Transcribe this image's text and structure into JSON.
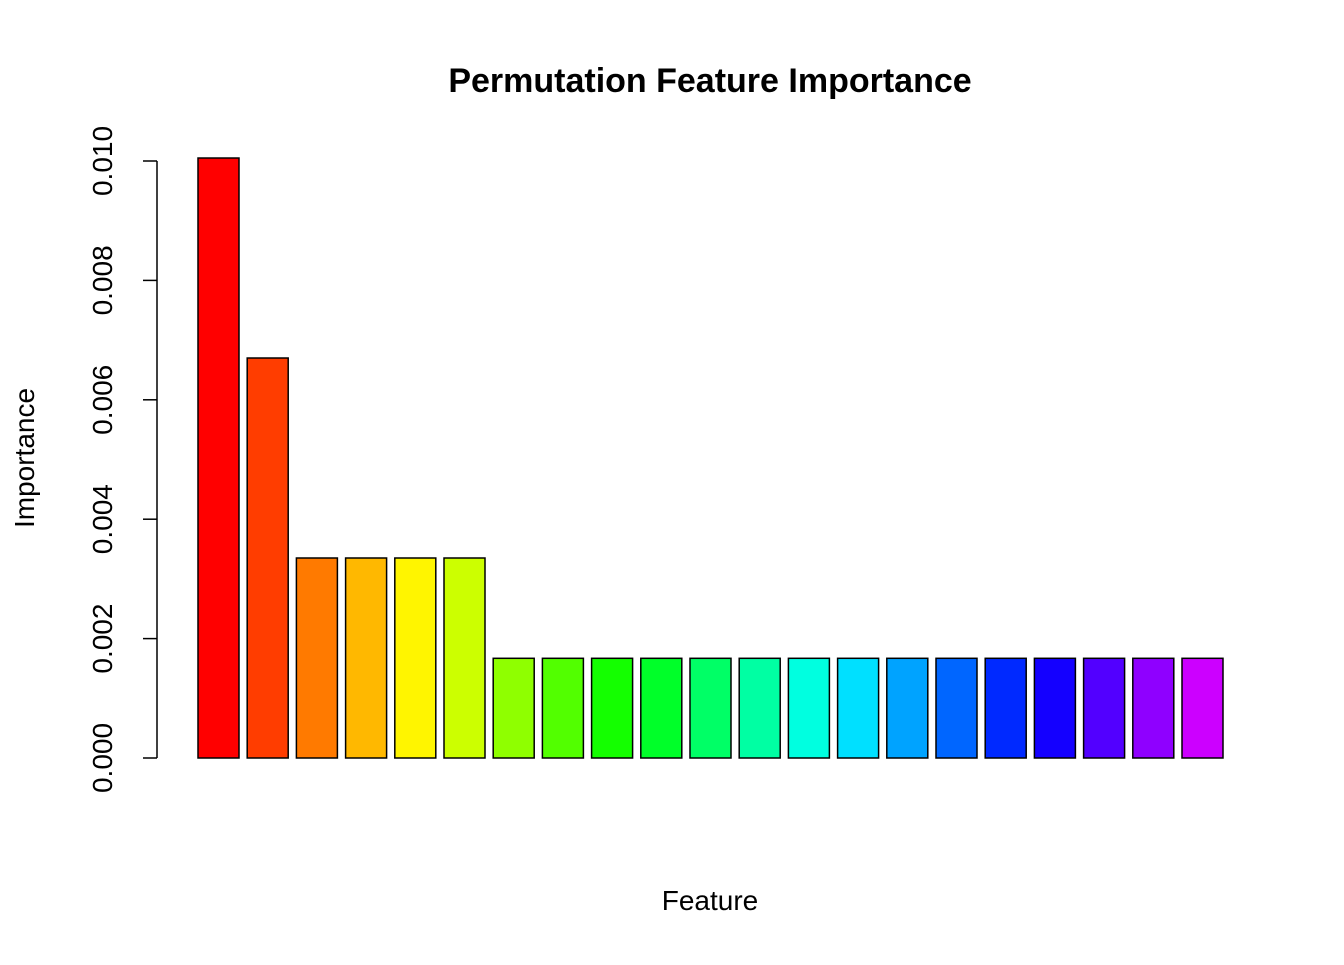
{
  "chart_data": {
    "type": "bar",
    "title": "Permutation Feature Importance",
    "xlabel": "Feature",
    "ylabel": "Importance",
    "ylim": [
      0,
      0.01
    ],
    "yticks": [
      "0.000",
      "0.002",
      "0.004",
      "0.006",
      "0.008",
      "0.010"
    ],
    "ytick_values": [
      0,
      0.002,
      0.004,
      0.006,
      0.008,
      0.01
    ],
    "grid": false,
    "legend": "none",
    "values": [
      0.01005,
      0.0067,
      0.00335,
      0.00335,
      0.00335,
      0.00335,
      0.00167,
      0.00167,
      0.00167,
      0.00167,
      0.00167,
      0.00167,
      0.00167,
      0.00167,
      0.00167,
      0.00167,
      0.00167,
      0.00167,
      0.00167,
      0.00167,
      0.00167
    ],
    "colors": [
      "#FF0000",
      "#FF3D00",
      "#FF7A00",
      "#FFB800",
      "#FFF500",
      "#CCFF00",
      "#8FFF00",
      "#52FF00",
      "#14FF00",
      "#00FF29",
      "#00FF66",
      "#00FFA3",
      "#00FFE0",
      "#00E0FF",
      "#00A3FF",
      "#0066FF",
      "#0029FF",
      "#1400FF",
      "#5200FF",
      "#8F00FF",
      "#CC00FF"
    ]
  }
}
